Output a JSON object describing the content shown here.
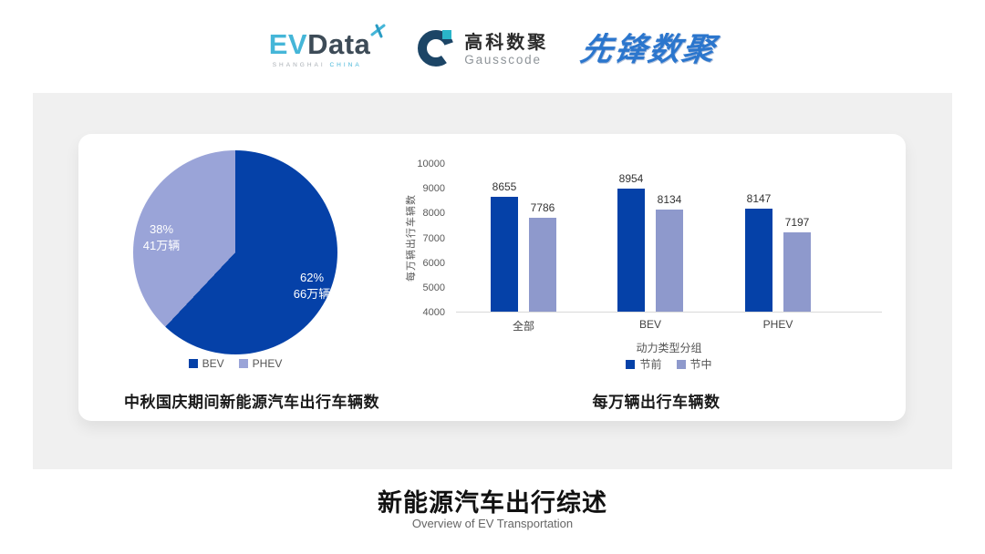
{
  "header": {
    "evdata": {
      "part_ev": "EV",
      "part_data": "Data",
      "sub_left": "SHANGHAI",
      "sub_right": "CHINA",
      "accent_color": "#45b6d8",
      "dark_color": "#3d4b57"
    },
    "gausscode": {
      "cn": "高科数聚",
      "en": "Gausscode",
      "navy_color": "#1c4566",
      "teal_color": "#2ab5c9"
    },
    "pioneer": {
      "text": "先锋数聚",
      "blue_color": "#2b76cd"
    }
  },
  "panel": {
    "bg": "#f0f0f0",
    "card_bg": "#ffffff"
  },
  "chart_data": [
    {
      "type": "pie",
      "title": "中秋国庆期间新能源汽车出行车辆数",
      "unit": "万辆",
      "start_angle": "top",
      "direction": "clockwise",
      "legend_position": "bottom",
      "slices": [
        {
          "label": "BEV",
          "percent": 62,
          "amount": 66,
          "percent_text": "62%",
          "amount_text": "66万辆",
          "color": "#0541a8"
        },
        {
          "label": "PHEV",
          "percent": 38,
          "amount": 41,
          "percent_text": "38%",
          "amount_text": "41万辆",
          "color": "#9aa4d8"
        }
      ]
    },
    {
      "type": "bar",
      "title": "每万辆出行车辆数",
      "categories": [
        "全部",
        "BEV",
        "PHEV"
      ],
      "series": [
        {
          "name": "节前",
          "values": [
            8655,
            8954,
            8147
          ],
          "color": "#0541a8"
        },
        {
          "name": "节中",
          "values": [
            7786,
            8134,
            7197
          ],
          "color": "#8e99cc"
        }
      ],
      "xlabel": "动力类型分组",
      "ylabel": "每万辆出行车辆数",
      "ylim": [
        4000,
        10000
      ],
      "yticks": [
        4000,
        5000,
        6000,
        7000,
        8000,
        9000,
        10000
      ],
      "grid": false,
      "legend_position": "bottom",
      "tick_color": "#595959"
    }
  ],
  "footer": {
    "title": "新能源汽车出行综述",
    "subtitle": "Overview of EV Transportation"
  }
}
